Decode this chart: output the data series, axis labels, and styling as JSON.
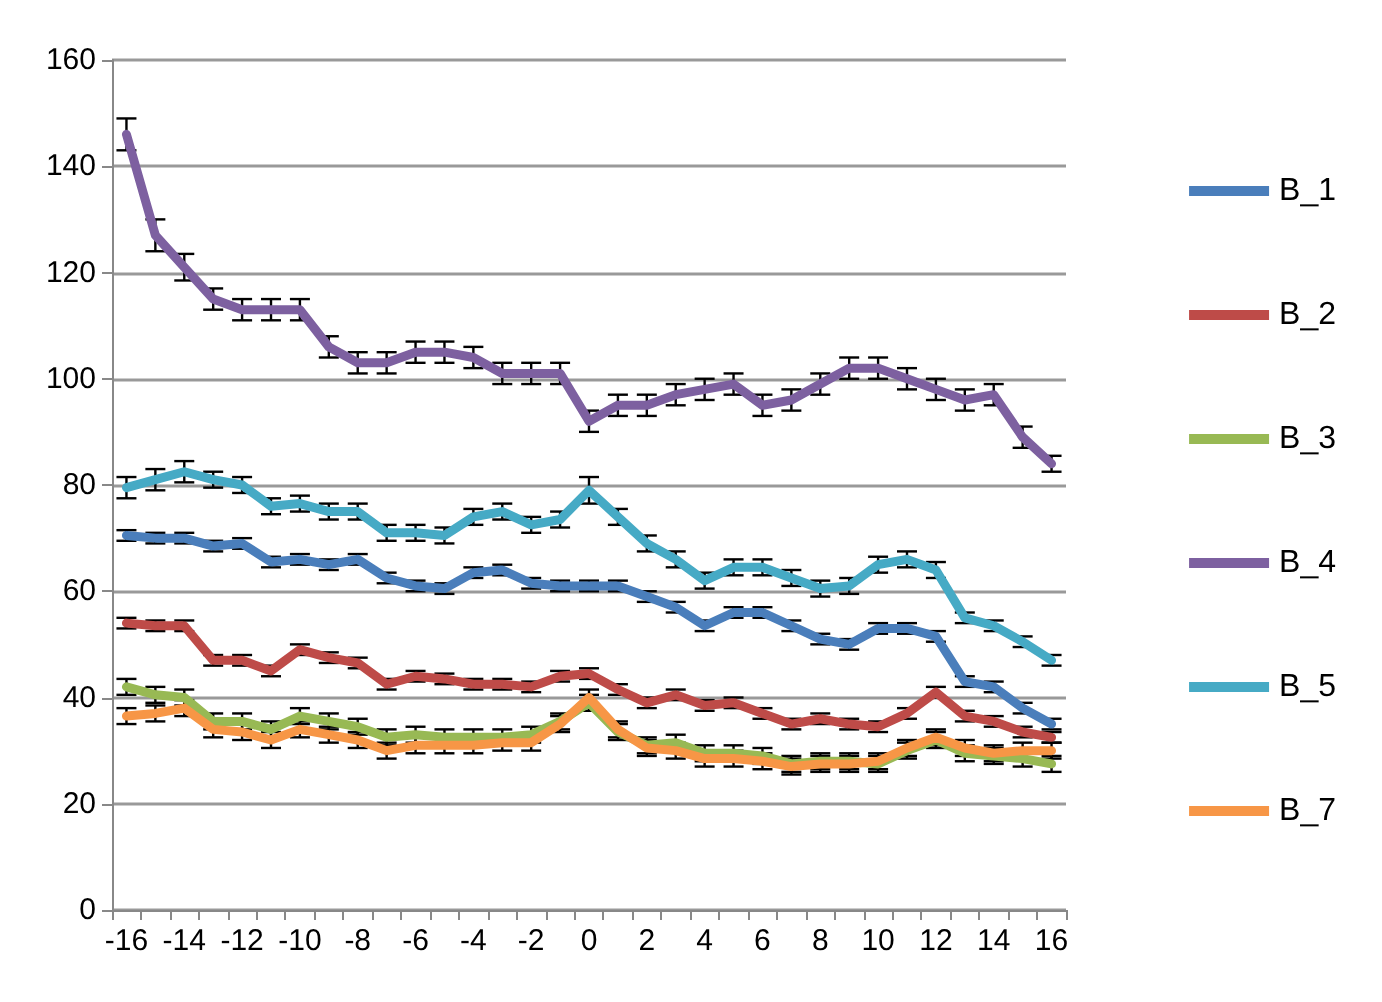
{
  "chart_data": {
    "type": "line",
    "categories": [
      "-16",
      null,
      "-14",
      null,
      "-12",
      null,
      "-10",
      null,
      "-8",
      null,
      "-6",
      null,
      "-4",
      null,
      "-2",
      null,
      "0",
      null,
      "2",
      null,
      "4",
      null,
      "6",
      null,
      "8",
      null,
      "10",
      null,
      "12",
      null,
      "14",
      null,
      "16"
    ],
    "ylim": [
      0,
      160
    ],
    "yticks": [
      0,
      20,
      40,
      60,
      80,
      100,
      120,
      140,
      160
    ],
    "grid": "y",
    "legend": "right",
    "marker": "none",
    "line_style": "solid",
    "series": [
      {
        "name": "B_1",
        "color": "#4a7ebb",
        "values": [
          70.5,
          70,
          70,
          68.5,
          69,
          65.5,
          66,
          65,
          66,
          62.5,
          61,
          60.5,
          63.5,
          64,
          61.5,
          61,
          61,
          61,
          59,
          57,
          53.5,
          56,
          56,
          53.5,
          51,
          50,
          53,
          53,
          51.5,
          43,
          42,
          38,
          35
        ],
        "errors": [
          1,
          1,
          1,
          1,
          1,
          1,
          1,
          1,
          1,
          1,
          1,
          1,
          1,
          1,
          1,
          1,
          1,
          1,
          1,
          1,
          1,
          1,
          1,
          1,
          1,
          1,
          1,
          1,
          1,
          1,
          1,
          1,
          1
        ]
      },
      {
        "name": "B_2",
        "color": "#be4b48",
        "values": [
          54,
          53.5,
          53.5,
          47,
          47,
          45,
          49,
          47.5,
          46.5,
          42.5,
          44,
          43.5,
          42.5,
          42.5,
          42,
          44,
          44.5,
          41.5,
          39,
          40.5,
          38.5,
          39,
          37,
          35,
          36,
          35,
          34.5,
          37,
          41,
          36.5,
          35.5,
          33.5,
          32.5
        ],
        "errors": [
          1,
          1,
          1,
          1,
          1,
          1,
          1,
          1,
          1,
          1,
          1,
          1,
          1,
          1,
          1,
          1,
          1,
          1,
          1,
          1,
          1,
          1,
          1,
          1,
          1,
          1,
          1,
          1,
          1,
          1,
          1,
          1,
          1
        ]
      },
      {
        "name": "B_3",
        "color": "#98b954",
        "values": [
          42,
          40.5,
          40,
          35.5,
          35.5,
          34,
          36.5,
          35.5,
          34.5,
          32.5,
          33,
          32.5,
          32.5,
          32.5,
          33,
          35.5,
          39,
          33.5,
          31,
          31.5,
          29.5,
          29.5,
          29,
          27.5,
          28,
          28,
          27.5,
          30,
          32,
          29.5,
          29,
          28.5,
          27.5
        ],
        "errors": [
          1.5,
          1.5,
          1.5,
          1.5,
          1.5,
          1.5,
          1.5,
          1.5,
          1.5,
          1.5,
          1.5,
          1.5,
          1.5,
          1.5,
          1.5,
          1.5,
          1.5,
          1.5,
          1.5,
          1.5,
          1.5,
          1.5,
          1.5,
          1.5,
          1.5,
          1.5,
          1.5,
          1.5,
          1.5,
          1.5,
          1.5,
          1.5,
          1.5
        ]
      },
      {
        "name": "B_4",
        "color": "#7d60a0",
        "values": [
          146,
          127,
          121,
          115,
          113,
          113,
          113,
          106,
          103,
          103,
          105,
          105,
          104,
          101,
          101,
          101,
          92,
          95,
          95,
          97,
          98,
          99,
          95,
          96,
          99,
          102,
          102,
          100,
          98,
          96,
          97,
          89,
          84
        ],
        "errors": [
          3,
          3,
          2.5,
          2,
          2,
          2,
          2,
          2,
          2,
          2,
          2,
          2,
          2,
          2,
          2,
          2,
          2,
          2,
          2,
          2,
          2,
          2,
          2,
          2,
          2,
          2,
          2,
          2,
          2,
          2,
          2,
          2,
          1.5
        ]
      },
      {
        "name": "B_5",
        "color": "#46aac5",
        "values": [
          79.5,
          81,
          82.5,
          81,
          80,
          76,
          76.5,
          75,
          75,
          71,
          71,
          70.5,
          74,
          75,
          72.5,
          73.5,
          79,
          74,
          69,
          66,
          62,
          64.5,
          64.5,
          62.5,
          60.5,
          61,
          65,
          66,
          64,
          55,
          53.5,
          50.5,
          47
        ],
        "errors": [
          2,
          2,
          2,
          1.5,
          1.5,
          1.5,
          1.5,
          1.5,
          1.5,
          1.5,
          1.5,
          1.5,
          1.5,
          1.5,
          1.5,
          1.5,
          2.5,
          1.5,
          1.5,
          1.5,
          1.5,
          1.5,
          1.5,
          1.5,
          1.5,
          1.5,
          1.5,
          1.5,
          1.5,
          1,
          1,
          1,
          1
        ]
      },
      {
        "name": "B_7",
        "color": "#f79646",
        "values": [
          36.5,
          37,
          38,
          34,
          33.5,
          32,
          34,
          33,
          32,
          30,
          31,
          31,
          31,
          31.5,
          31.5,
          35,
          40,
          34,
          30.5,
          30,
          28.5,
          28.5,
          28,
          27,
          27.5,
          27.5,
          28,
          30.5,
          32.5,
          30.5,
          29.5,
          30,
          30
        ],
        "errors": [
          1.5,
          1.5,
          1.5,
          1.5,
          1.5,
          1.5,
          1.5,
          1.5,
          1.5,
          1.5,
          1.5,
          1.5,
          1.5,
          1.5,
          1.5,
          1.5,
          1.5,
          1.5,
          1.5,
          1.5,
          1.5,
          1.5,
          1.5,
          1.5,
          1.5,
          1.5,
          1.5,
          1.5,
          1.5,
          1.5,
          1.5,
          1.5,
          1.5
        ]
      }
    ]
  }
}
